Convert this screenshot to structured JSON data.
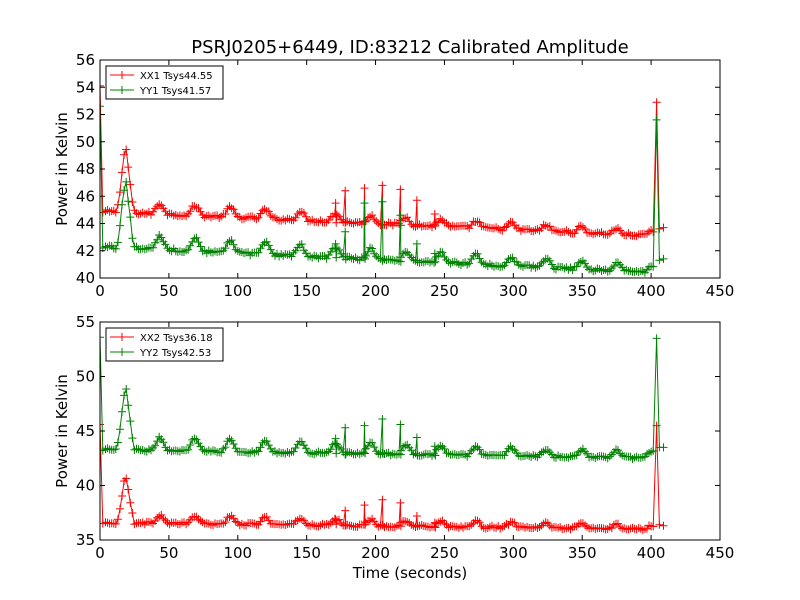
{
  "figure": {
    "title": "PSRJ0205+6449, ID:83212 Calibrated Amplitude",
    "xlabel": "Time (seconds)"
  },
  "chart_data": [
    {
      "type": "line",
      "title": "PSRJ0205+6449, ID:83212 Calibrated Amplitude",
      "xlabel": "",
      "ylabel": "Power in Kelvin",
      "xlim": [
        0,
        450
      ],
      "ylim": [
        40,
        56
      ],
      "xticks": [
        "0",
        "50",
        "100",
        "150",
        "200",
        "250",
        "300",
        "350",
        "400",
        "450"
      ],
      "yticks": [
        "40",
        "42",
        "44",
        "46",
        "48",
        "50",
        "52",
        "54",
        "56"
      ],
      "legend": "top-left",
      "series": [
        {
          "name": "XX1 Tsys44.55",
          "color": "#ff0000",
          "base": {
            "start": 44.9,
            "end": 43.1,
            "amp_start": 0.8,
            "amp_end": 0.35,
            "period": 25.5,
            "phase": 18
          },
          "points": [
            [
              0,
              54.1
            ],
            [
              2,
              44.8
            ],
            [
              15,
              45.6
            ],
            [
              18,
              49.8
            ],
            [
              20,
              48.3
            ],
            [
              24,
              44.9
            ],
            [
              404,
              52.9
            ],
            [
              406,
              43.6
            ],
            [
              409,
              43.7
            ]
          ],
          "spikes": [
            [
              171,
              45.5
            ],
            [
              178,
              46.4
            ],
            [
              192,
              46.6
            ],
            [
              205,
              46.8
            ],
            [
              218,
              46.5
            ],
            [
              230,
              45.7
            ],
            [
              243,
              44.7
            ]
          ]
        },
        {
          "name": "YY1 Tsys41.57",
          "color": "#008000",
          "base": {
            "start": 42.3,
            "end": 40.4,
            "amp_start": 1.0,
            "amp_end": 0.55,
            "period": 25.5,
            "phase": 18
          },
          "points": [
            [
              0,
              52.6
            ],
            [
              2,
              42.2
            ],
            [
              15,
              44.2
            ],
            [
              18,
              47.3
            ],
            [
              20,
              46.3
            ],
            [
              24,
              42.5
            ],
            [
              404,
              51.6
            ],
            [
              406,
              41.3
            ],
            [
              409,
              41.4
            ]
          ],
          "spikes": [
            [
              171,
              42.5
            ],
            [
              178,
              43.4
            ],
            [
              192,
              45.5
            ],
            [
              205,
              45.6
            ],
            [
              218,
              44.6
            ],
            [
              230,
              42.5
            ],
            [
              243,
              41.8
            ]
          ]
        }
      ]
    },
    {
      "type": "line",
      "title": "",
      "xlabel": "Time (seconds)",
      "ylabel": "Power in Kelvin",
      "xlim": [
        0,
        450
      ],
      "ylim": [
        35,
        55
      ],
      "xticks": [
        "0",
        "50",
        "100",
        "150",
        "200",
        "250",
        "300",
        "350",
        "400",
        "450"
      ],
      "yticks": [
        "35",
        "40",
        "45",
        "50",
        "55"
      ],
      "legend": "top-left",
      "series": [
        {
          "name": "XX2 Tsys36.18",
          "color": "#ff0000",
          "base": {
            "start": 36.6,
            "end": 36.0,
            "amp_start": 0.8,
            "amp_end": 0.35,
            "period": 25.5,
            "phase": 18
          },
          "points": [
            [
              0,
              45.6
            ],
            [
              2,
              36.5
            ],
            [
              15,
              37.3
            ],
            [
              18,
              41.0
            ],
            [
              20,
              39.4
            ],
            [
              24,
              36.6
            ],
            [
              404,
              45.5
            ],
            [
              406,
              36.4
            ],
            [
              409,
              36.3
            ]
          ],
          "spikes": [
            [
              171,
              36.9
            ],
            [
              178,
              37.7
            ],
            [
              192,
              38.2
            ],
            [
              205,
              38.7
            ],
            [
              218,
              38.4
            ],
            [
              230,
              37.2
            ],
            [
              243,
              36.6
            ]
          ]
        },
        {
          "name": "YY2 Tsys42.53",
          "color": "#008000",
          "base": {
            "start": 43.3,
            "end": 42.5,
            "amp_start": 1.3,
            "amp_end": 0.6,
            "period": 25.5,
            "phase": 18
          },
          "points": [
            [
              0,
              53.6
            ],
            [
              2,
              43.2
            ],
            [
              15,
              45.0
            ],
            [
              18,
              49.2
            ],
            [
              20,
              47.6
            ],
            [
              24,
              43.5
            ],
            [
              404,
              53.5
            ],
            [
              406,
              43.5
            ],
            [
              409,
              43.5
            ]
          ],
          "spikes": [
            [
              171,
              44.3
            ],
            [
              178,
              45.3
            ],
            [
              192,
              45.5
            ],
            [
              205,
              46.1
            ],
            [
              218,
              45.6
            ],
            [
              230,
              44.4
            ],
            [
              243,
              43.6
            ]
          ]
        }
      ]
    }
  ]
}
